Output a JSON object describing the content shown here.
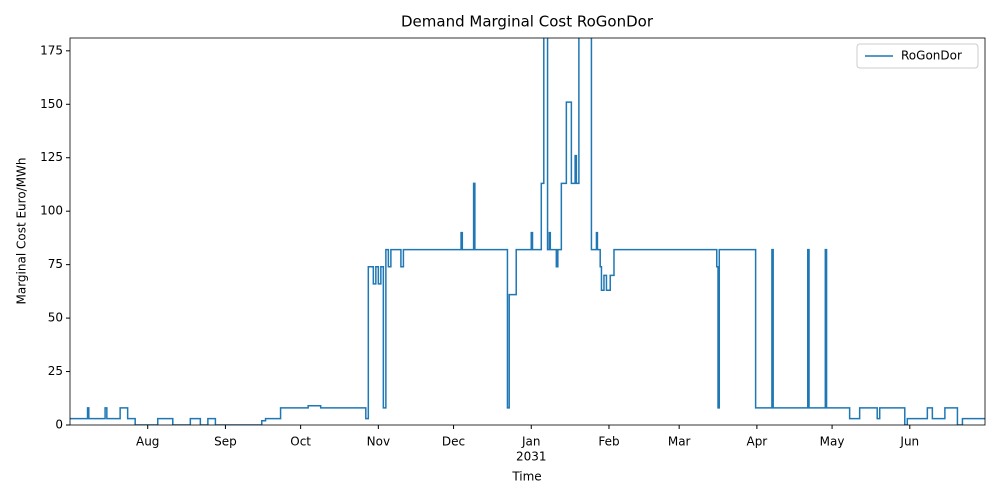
{
  "chart_data": {
    "type": "line",
    "title": "Demand Marginal Cost RoGonDor",
    "xlabel": "Time",
    "ylabel": "Marginal Cost Euro/MWh",
    "drawstyle": "steps-post",
    "xlim": [
      0,
      365
    ],
    "xticks": [
      {
        "value": 31,
        "label": "Aug"
      },
      {
        "value": 62,
        "label": "Sep"
      },
      {
        "value": 92,
        "label": "Oct"
      },
      {
        "value": 123,
        "label": "Nov"
      },
      {
        "value": 153,
        "label": "Dec"
      },
      {
        "value": 184,
        "label": "Jan",
        "year": "2031"
      },
      {
        "value": 215,
        "label": "Feb"
      },
      {
        "value": 243,
        "label": "Mar"
      },
      {
        "value": 274,
        "label": "Apr"
      },
      {
        "value": 304,
        "label": "May"
      },
      {
        "value": 335,
        "label": "Jun"
      }
    ],
    "ylim": [
      0,
      181
    ],
    "yticks": [
      0,
      25,
      50,
      75,
      100,
      125,
      150,
      175
    ],
    "legend": "upper right",
    "series": [
      {
        "name": "RoGonDor",
        "color": "#1f77b4",
        "x": [
          0,
          7,
          7.5,
          14,
          14.7,
          20,
          23,
          26,
          35,
          41,
          48,
          52,
          55,
          58,
          76.5,
          78,
          84,
          95,
          100,
          118,
          119,
          121,
          122,
          123,
          124,
          125,
          126,
          127,
          128,
          132,
          133,
          156,
          156.5,
          161,
          161.5,
          174.5,
          175.2,
          178,
          184,
          184.5,
          188,
          189,
          190.5,
          191.2,
          191.6,
          194,
          194.6,
          196,
          198,
          200,
          201.5,
          202,
          203,
          208,
          210,
          210.4,
          211.5,
          212,
          213,
          214,
          215.5,
          217,
          258,
          258.5,
          259,
          273.5,
          280,
          280.5,
          294.3,
          294.8,
          301.3,
          301.8,
          311,
          315,
          322,
          323,
          333,
          334,
          342,
          344,
          349,
          354,
          356,
          365
        ],
        "values": [
          3,
          8,
          3,
          8,
          3,
          8,
          3,
          0,
          3,
          0,
          3,
          0,
          3,
          0,
          2,
          3,
          8,
          9,
          8,
          3,
          74,
          66,
          74,
          66,
          74,
          8,
          82,
          74,
          82,
          74,
          82,
          90,
          82,
          113,
          82,
          8,
          61,
          82,
          90,
          82,
          113,
          200,
          82,
          90,
          82,
          74,
          82,
          113,
          151,
          113,
          126,
          113,
          200,
          82,
          90,
          82,
          74,
          63,
          70,
          63,
          70,
          82,
          74,
          8,
          82,
          8,
          82,
          8,
          82,
          8,
          82,
          8,
          3,
          8,
          3,
          8,
          0,
          3,
          8,
          3,
          8,
          0,
          3,
          3
        ]
      }
    ]
  }
}
